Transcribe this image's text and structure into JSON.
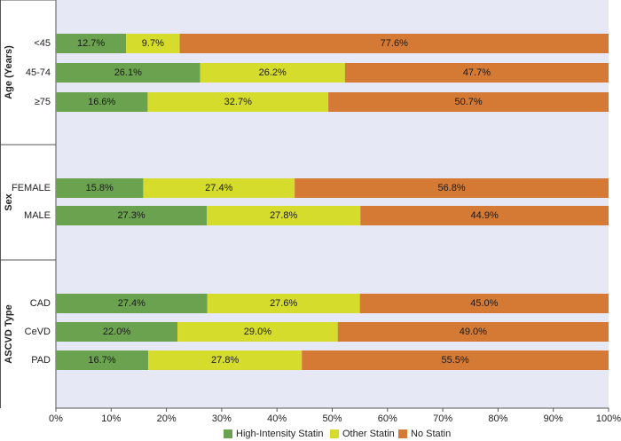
{
  "chart_data": {
    "type": "bar",
    "orientation": "horizontal",
    "stacked": "percent",
    "groups": [
      {
        "name": "Age (Years)",
        "categories": [
          "<45",
          "45-74",
          "≥75"
        ]
      },
      {
        "name": "Sex",
        "categories": [
          "FEMALE",
          "MALE"
        ]
      },
      {
        "name": "ASCVD Type",
        "categories": [
          "CAD",
          "CeVD",
          "PAD"
        ]
      }
    ],
    "categories": [
      "<45",
      "45-74",
      "≥75",
      "FEMALE",
      "MALE",
      "CAD",
      "CeVD",
      "PAD"
    ],
    "series": [
      {
        "name": "High-Intensity Statin",
        "color": "#6aa24f",
        "values": [
          12.7,
          26.1,
          16.6,
          15.8,
          27.3,
          27.4,
          22.0,
          16.7
        ],
        "labels": [
          "12.7%",
          "26.1%",
          "16.6%",
          "15.8%",
          "27.3%",
          "27.4%",
          "22.0%",
          "16.7%"
        ]
      },
      {
        "name": "Other Statin",
        "color": "#d5dc2c",
        "values": [
          9.7,
          26.2,
          32.7,
          27.4,
          27.8,
          27.6,
          29.0,
          27.8
        ],
        "labels": [
          "9.7%",
          "26.2%",
          "32.7%",
          "27.4%",
          "27.8%",
          "27.6%",
          "29.0%",
          "27.8%"
        ]
      },
      {
        "name": "No Statin",
        "color": "#d47a35",
        "values": [
          77.6,
          47.7,
          50.7,
          56.8,
          44.9,
          45.0,
          49.0,
          55.5
        ],
        "labels": [
          "77.6%",
          "47.7%",
          "50.7%",
          "56.8%",
          "44.9%",
          "45.0%",
          "49.0%",
          "55.5%"
        ]
      }
    ],
    "xlim": [
      0,
      100
    ],
    "xticks": [
      "0%",
      "10%",
      "20%",
      "30%",
      "40%",
      "50%",
      "60%",
      "70%",
      "80%",
      "90%",
      "100%"
    ],
    "legend_position": "bottom",
    "plot_background": "#e6e9f5"
  }
}
